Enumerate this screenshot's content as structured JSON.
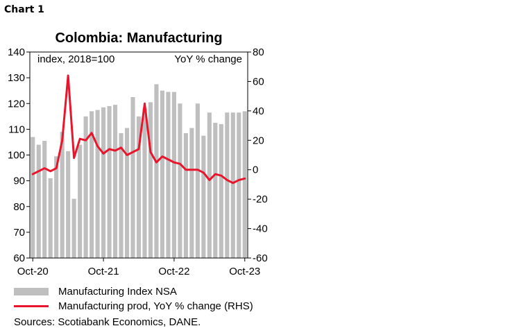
{
  "chart_label": "Chart 1",
  "source": "Sources: Scotiabank Economics, DANE.",
  "chart_data": {
    "type": "bar",
    "title": "Colombia: Manufacturing",
    "left_axis_label": "index, 2018=100",
    "right_axis_label": "YoY % change",
    "ylim_left": [
      60,
      140
    ],
    "ylim_right": [
      -60,
      80
    ],
    "left_ticks": [
      60,
      70,
      80,
      90,
      100,
      110,
      120,
      130,
      140
    ],
    "right_ticks": [
      -60,
      -40,
      -20,
      0,
      20,
      40,
      60,
      80
    ],
    "x_tick_labels": [
      "Oct-20",
      "Oct-21",
      "Oct-22",
      "Oct-23"
    ],
    "x_tick_indices": [
      0,
      12,
      24,
      36
    ],
    "categories": [
      "Oct-20",
      "Nov-20",
      "Dec-20",
      "Jan-21",
      "Feb-21",
      "Mar-21",
      "Apr-21",
      "May-21",
      "Jun-21",
      "Jul-21",
      "Aug-21",
      "Sep-21",
      "Oct-21",
      "Nov-21",
      "Dec-21",
      "Jan-22",
      "Feb-22",
      "Mar-22",
      "Apr-22",
      "May-22",
      "Jun-22",
      "Jul-22",
      "Aug-22",
      "Sep-22",
      "Oct-22",
      "Nov-22",
      "Dec-22",
      "Jan-23",
      "Feb-23",
      "Mar-23",
      "Apr-23",
      "May-23",
      "Jun-23",
      "Jul-23",
      "Aug-23",
      "Sep-23",
      "Oct-23"
    ],
    "grid": false,
    "legend_position": "bottom",
    "series": [
      {
        "name": "Manufacturing Index NSA",
        "type": "bar",
        "axis": "left",
        "color": "#bfbfbf",
        "values": [
          107,
          104,
          105.5,
          91,
          99.5,
          109,
          101.5,
          83,
          104,
          115,
          117,
          117.5,
          118.5,
          119,
          119.5,
          108.5,
          110.5,
          122.5,
          115,
          118,
          120.5,
          127.5,
          125,
          124.5,
          124.5,
          120,
          108.5,
          110.5,
          120,
          107.5,
          116.5,
          112.5,
          112,
          116.5,
          116.5,
          116.5,
          117
        ]
      },
      {
        "name": "Manufacturing prod, YoY % change (RHS)",
        "type": "line",
        "axis": "right",
        "color": "#e8162c",
        "values": [
          -3,
          -1,
          1,
          -1,
          1,
          20,
          64,
          8,
          21,
          20,
          25,
          16,
          11,
          14,
          13,
          15,
          10,
          12,
          14,
          45,
          12,
          5,
          9,
          7,
          5,
          4,
          0,
          0,
          0,
          -2,
          -7,
          -3,
          -4,
          -7,
          -9,
          -7,
          -6
        ]
      }
    ]
  }
}
